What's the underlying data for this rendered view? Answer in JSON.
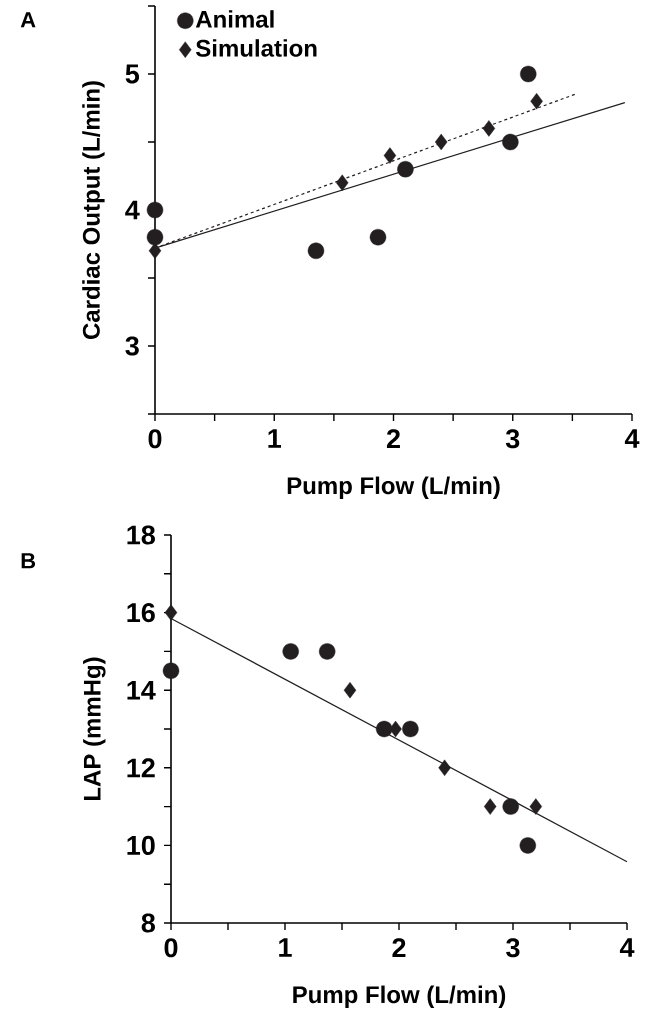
{
  "chart_data": [
    {
      "type": "scatter",
      "xlabel": "Pump Flow (L/min)",
      "ylabel": "Cardiac Output (L/min)",
      "annotations": [
        "A"
      ],
      "xlim": [
        0,
        4
      ],
      "ylim": [
        2.5,
        5.5
      ],
      "xticks": [
        0,
        {
          "value": 0.5,
          "label": null
        },
        1,
        {
          "value": 1.5,
          "label": null
        },
        2,
        {
          "value": 2.5,
          "label": null
        },
        3,
        {
          "value": 3.5,
          "label": null
        },
        4
      ],
      "yticks": [
        {
          "value": 2.5,
          "label": null
        },
        3,
        {
          "value": 3.5,
          "label": null
        },
        4,
        {
          "value": 4.5,
          "label": null
        },
        5,
        {
          "value": 5.5,
          "label": null
        }
      ],
      "legend": "top left",
      "grid": false,
      "series": [
        {
          "name": "Animal",
          "color": "#231f20",
          "marker": "circle",
          "x": [
            0,
            0,
            1.35,
            1.87,
            2.1,
            2.98,
            3.13
          ],
          "values": [
            4.0,
            3.8,
            3.7,
            3.8,
            4.3,
            4.5,
            5.0
          ]
        },
        {
          "name": "Simulation",
          "color": "#231f20",
          "marker": "diamond",
          "x": [
            0,
            1.57,
            1.97,
            2.4,
            2.8,
            3.2
          ],
          "values": [
            3.7,
            4.2,
            4.4,
            4.5,
            4.6,
            4.8
          ]
        },
        {
          "type": "line",
          "color": "#231f20",
          "line_style": "solid",
          "marker": "none",
          "x": [
            0,
            3.94
          ],
          "values": [
            3.72,
            4.79
          ]
        },
        {
          "type": "line",
          "color": "#231f20",
          "line_style": "dashed",
          "marker": "none",
          "x": [
            0,
            3.52
          ],
          "values": [
            3.72,
            4.85
          ]
        }
      ]
    },
    {
      "type": "scatter",
      "xlabel": "Pump Flow (L/min)",
      "ylabel": "LAP (mmHg)",
      "annotations": [
        "B"
      ],
      "xlim": [
        0,
        4
      ],
      "ylim": [
        8,
        18
      ],
      "xticks": [
        0,
        {
          "value": 0.5,
          "label": null
        },
        1,
        {
          "value": 1.5,
          "label": null
        },
        2,
        {
          "value": 2.5,
          "label": null
        },
        3,
        {
          "value": 3.5,
          "label": null
        },
        4
      ],
      "yticks": [
        8,
        {
          "value": 9,
          "label": null
        },
        10,
        {
          "value": 11,
          "label": null
        },
        12,
        {
          "value": 13,
          "label": null
        },
        14,
        {
          "value": 15,
          "label": null
        },
        16,
        {
          "value": 17,
          "label": null
        },
        18
      ],
      "grid": false,
      "series": [
        {
          "color": "#231f20",
          "marker": "circle",
          "x": [
            0,
            1.05,
            1.37,
            1.87,
            2.1,
            2.98,
            3.13
          ],
          "values": [
            14.5,
            15,
            15,
            13,
            13,
            11,
            10
          ]
        },
        {
          "color": "#231f20",
          "marker": "diamond",
          "x": [
            0,
            1.57,
            1.97,
            2.4,
            2.8,
            3.2
          ],
          "values": [
            16,
            14,
            13,
            12,
            11,
            11
          ]
        },
        {
          "type": "line",
          "color": "#231f20",
          "line_style": "solid",
          "marker": "none",
          "x": [
            0,
            4
          ],
          "values": [
            15.85,
            9.58
          ]
        }
      ]
    }
  ]
}
